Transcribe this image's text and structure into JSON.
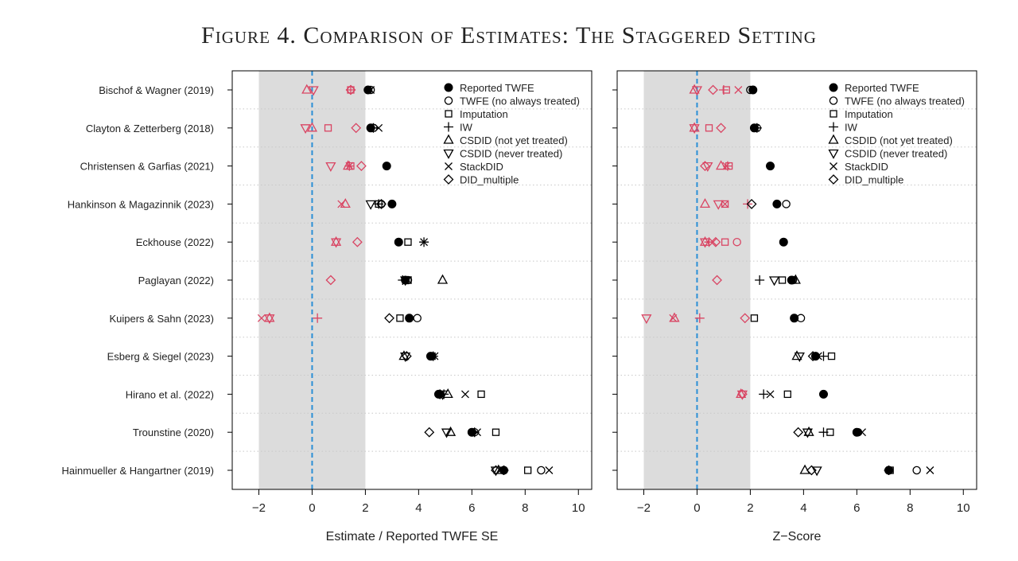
{
  "title": "Figure 4. Comparison of Estimates: The Staggered Setting",
  "colors": {
    "above_threshold": "#000000",
    "within_threshold": "#d94563",
    "shaded_band": "#dcdcdc",
    "zero_line": "#2b8fd6"
  },
  "legend": [
    {
      "label": "Reported TWFE",
      "marker": "filled-circle"
    },
    {
      "label": "TWFE (no always treated)",
      "marker": "open-circle"
    },
    {
      "label": "Imputation",
      "marker": "open-square"
    },
    {
      "label": "IW",
      "marker": "plus"
    },
    {
      "label": "CSDID (not yet treated)",
      "marker": "triangle-up"
    },
    {
      "label": "CSDID (never treated)",
      "marker": "triangle-down"
    },
    {
      "label": "StackDID",
      "marker": "cross"
    },
    {
      "label": "DID_multiple",
      "marker": "diamond"
    }
  ],
  "chart_data": [
    {
      "type": "scatter",
      "xlabel": "Estimate / Reported TWFE SE",
      "xlim": [
        -3,
        10.5
      ],
      "xticks": [
        -2,
        0,
        2,
        4,
        6,
        8,
        10
      ],
      "shaded_band": [
        -2,
        2
      ],
      "reference_line": 0,
      "categories": [
        "Bischof & Wagner (2019)",
        "Clayton & Zetterberg (2018)",
        "Christensen & Garfias (2021)",
        "Hankinson & Magazinnik (2023)",
        "Eckhouse (2022)",
        "Paglayan (2022)",
        "Kuipers & Sahn (2023)",
        "Esberg & Siegel (2023)",
        "Hirano et al. (2022)",
        "Trounstine (2020)",
        "Hainmueller & Hangartner (2019)"
      ],
      "series": [
        {
          "name": "Reported TWFE",
          "values": [
            2.1,
            2.2,
            2.8,
            3.0,
            3.25,
            3.5,
            3.65,
            4.45,
            4.75,
            6.0,
            7.2
          ]
        },
        {
          "name": "TWFE (no always treated)",
          "values": [
            2.2,
            2.3,
            2.8,
            2.6,
            3.25,
            3.6,
            3.95,
            4.5,
            4.8,
            6.1,
            8.6
          ]
        },
        {
          "name": "Imputation",
          "values": [
            1.45,
            0.6,
            1.45,
            2.5,
            3.6,
            3.6,
            3.3,
            4.5,
            6.35,
            6.9,
            8.1
          ]
        },
        {
          "name": "IW",
          "values": [
            1.45,
            2.3,
            1.4,
            2.5,
            4.2,
            3.4,
            0.2,
            4.55,
            4.95,
            6.1,
            7.2
          ]
        },
        {
          "name": "CSDID (not yet treated)",
          "values": [
            -0.2,
            0.0,
            1.35,
            1.25,
            0.9,
            4.9,
            -1.6,
            3.45,
            5.1,
            5.2,
            7.0
          ]
        },
        {
          "name": "CSDID (never treated)",
          "values": [
            0.05,
            -0.25,
            0.7,
            2.2,
            0.9,
            3.5,
            -1.6,
            3.5,
            4.9,
            5.05,
            6.9
          ]
        },
        {
          "name": "StackDID",
          "values": [
            2.2,
            2.5,
            1.4,
            1.1,
            4.2,
            3.6,
            -1.9,
            4.6,
            5.75,
            6.2,
            8.9
          ]
        },
        {
          "name": "DID_multiple",
          "values": [
            1.45,
            1.65,
            1.85,
            2.6,
            1.7,
            0.7,
            2.9,
            3.55,
            4.8,
            4.4,
            6.9
          ]
        }
      ]
    },
    {
      "type": "scatter",
      "xlabel": "Z−Score",
      "xlim": [
        -3,
        10.5
      ],
      "xticks": [
        -2,
        0,
        2,
        4,
        6,
        8,
        10
      ],
      "shaded_band": [
        -2,
        2
      ],
      "reference_line": 0,
      "categories": [
        "Bischof & Wagner (2019)",
        "Clayton & Zetterberg (2018)",
        "Christensen & Garfias (2021)",
        "Hankinson & Magazinnik (2023)",
        "Eckhouse (2022)",
        "Paglayan (2022)",
        "Kuipers & Sahn (2023)",
        "Esberg & Siegel (2023)",
        "Hirano et al. (2022)",
        "Trounstine (2020)",
        "Hainmueller & Hangartner (2019)"
      ],
      "series": [
        {
          "name": "Reported TWFE",
          "values": [
            2.1,
            2.15,
            2.75,
            3.0,
            3.25,
            3.55,
            3.65,
            4.45,
            4.75,
            6.0,
            7.2
          ]
        },
        {
          "name": "TWFE (no always treated)",
          "values": [
            2.0,
            2.25,
            2.75,
            3.35,
            1.5,
            3.6,
            3.9,
            4.45,
            4.75,
            6.05,
            8.25
          ]
        },
        {
          "name": "Imputation",
          "values": [
            1.1,
            0.45,
            1.2,
            1.05,
            1.05,
            3.2,
            2.15,
            5.05,
            3.4,
            5.0,
            7.25
          ]
        },
        {
          "name": "IW",
          "values": [
            1.0,
            2.25,
            1.15,
            1.9,
            0.45,
            2.35,
            0.1,
            4.75,
            2.5,
            4.75,
            7.2
          ]
        },
        {
          "name": "CSDID (not yet treated)",
          "values": [
            -0.1,
            -0.1,
            0.9,
            0.3,
            0.3,
            3.7,
            -0.85,
            3.75,
            1.65,
            4.2,
            4.05
          ]
        },
        {
          "name": "CSDID (never treated)",
          "values": [
            0.0,
            -0.1,
            0.4,
            0.8,
            0.3,
            2.9,
            -1.9,
            3.85,
            1.7,
            4.15,
            4.5
          ]
        },
        {
          "name": "StackDID",
          "values": [
            1.55,
            2.2,
            1.1,
            1.05,
            0.6,
            3.6,
            -0.9,
            4.55,
            2.75,
            6.2,
            8.75
          ]
        },
        {
          "name": "DID_multiple",
          "values": [
            0.6,
            0.9,
            0.3,
            2.05,
            0.7,
            0.75,
            1.8,
            4.35,
            1.7,
            3.8,
            4.3
          ]
        }
      ]
    }
  ]
}
